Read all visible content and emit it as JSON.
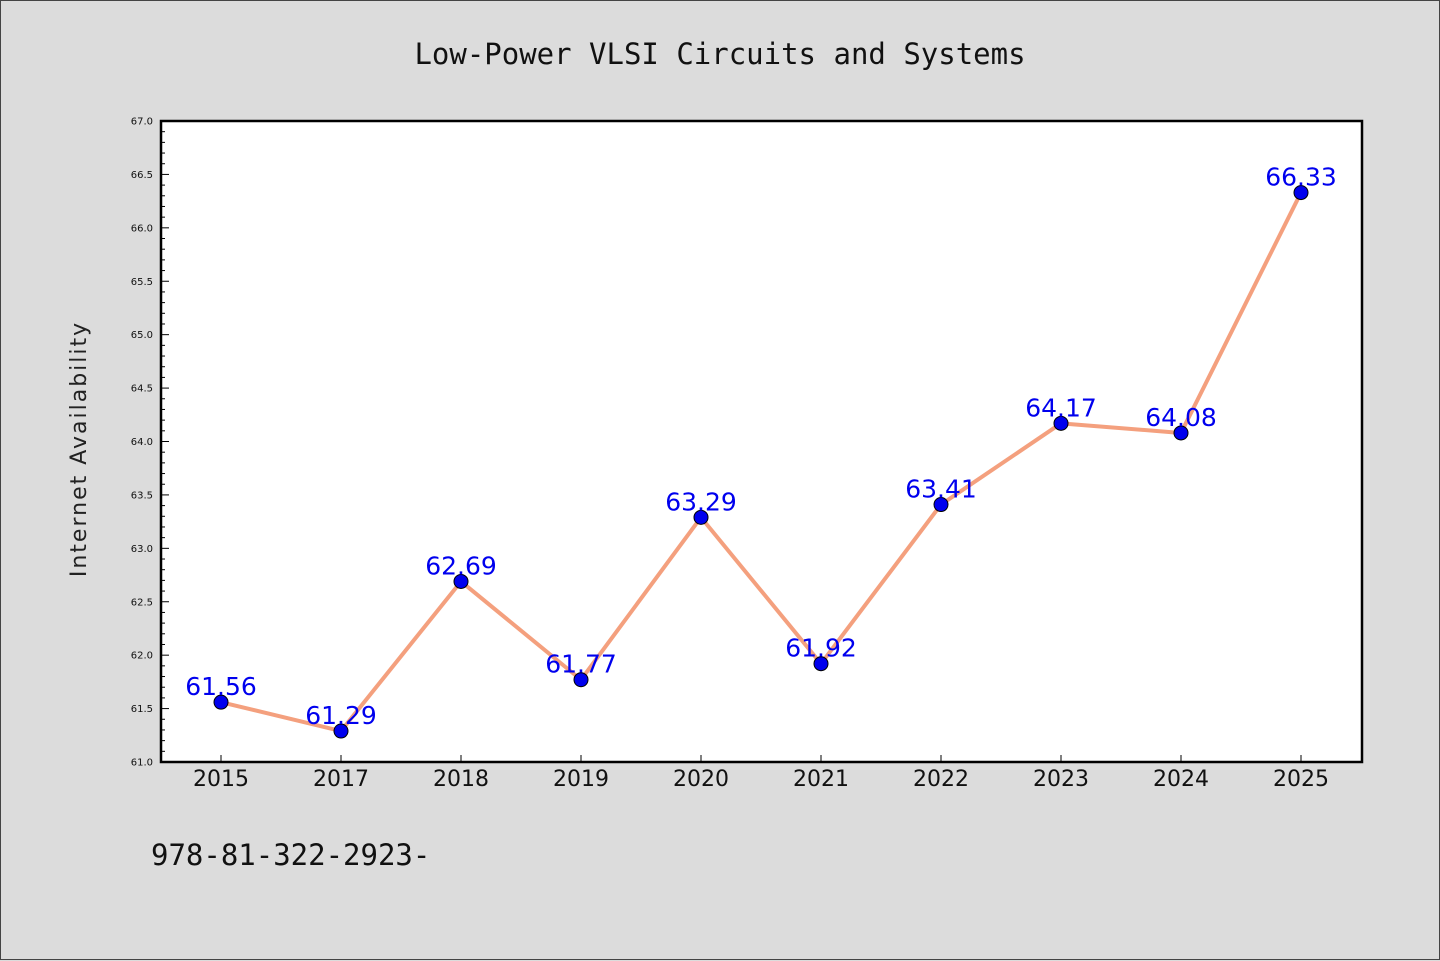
{
  "chart_data": {
    "type": "line",
    "title": "Low-Power VLSI Circuits and Systems",
    "xlabel": "",
    "ylabel": "Internet Availability",
    "categories": [
      "2015",
      "2017",
      "2018",
      "2019",
      "2020",
      "2021",
      "2022",
      "2023",
      "2024",
      "2025"
    ],
    "values": [
      61.56,
      61.29,
      62.69,
      61.77,
      63.29,
      61.92,
      63.41,
      64.17,
      64.08,
      66.33
    ],
    "data_labels": [
      "61.56",
      "61.29",
      "62.69",
      "61.77",
      "63.29",
      "61.92",
      "63.41",
      "64.17",
      "64.08",
      "66.33"
    ],
    "ylim": [
      61.0,
      67.0
    ],
    "yticks": [
      "61.0",
      "61.5",
      "62.0",
      "62.5",
      "63.0",
      "63.5",
      "64.0",
      "64.5",
      "65.0",
      "65.5",
      "66.0",
      "66.5",
      "67.0"
    ],
    "grid": false,
    "line_color": "#f4a07e",
    "marker_color": "#0000ee",
    "label_color": "#0000ee"
  },
  "footer_text": "978-81-322-2923-"
}
